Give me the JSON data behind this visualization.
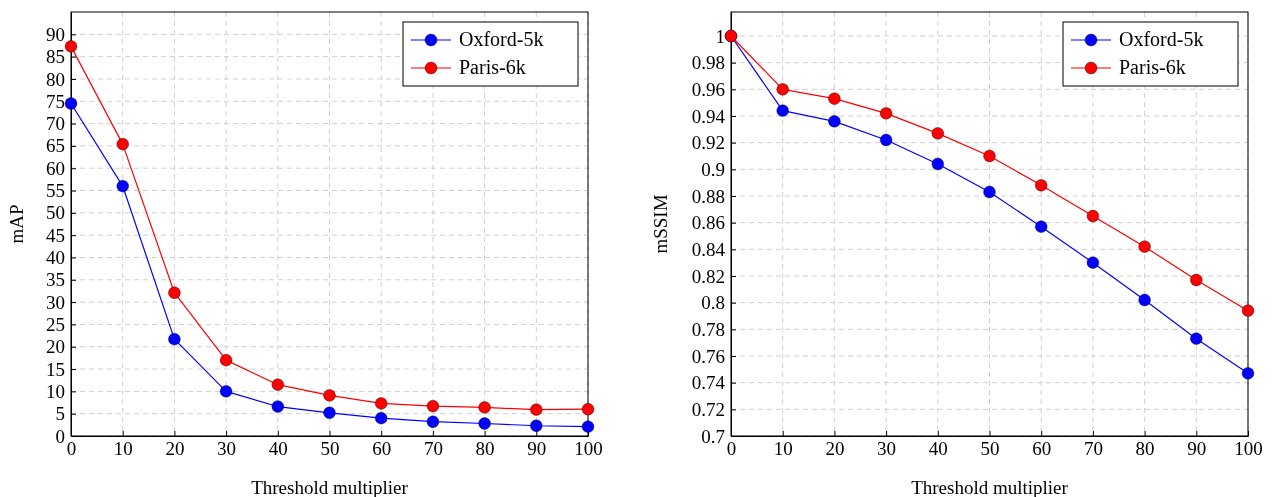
{
  "chart_data": [
    {
      "type": "line",
      "xlabel": "Threshold multiplier",
      "ylabel": "mAP",
      "x": [
        0,
        10,
        20,
        30,
        40,
        50,
        60,
        70,
        80,
        90,
        100
      ],
      "xlim": [
        0,
        100
      ],
      "xticks": [
        0,
        10,
        20,
        30,
        40,
        50,
        60,
        70,
        80,
        90,
        100
      ],
      "ylim": [
        0,
        95
      ],
      "yticks": [
        0,
        5,
        10,
        15,
        20,
        25,
        30,
        35,
        40,
        45,
        50,
        55,
        60,
        65,
        70,
        75,
        80,
        85,
        90
      ],
      "grid": true,
      "legend": "top right",
      "marker": "circle",
      "line_style": "solid",
      "series": [
        {
          "name": "Oxford-5k",
          "color": "#0000ff",
          "values": [
            74.5,
            56,
            21.7,
            10,
            6.6,
            5.2,
            4,
            3.2,
            2.8,
            2.3,
            2.1
          ]
        },
        {
          "name": "Paris-6k",
          "color": "#ff0000",
          "values": [
            87.3,
            65.4,
            32.1,
            17,
            11.5,
            9.1,
            7.3,
            6.7,
            6.4,
            5.9,
            6.0
          ]
        }
      ]
    },
    {
      "type": "line",
      "xlabel": "Threshold multiplier",
      "ylabel": "mSSIM",
      "x": [
        0,
        10,
        20,
        30,
        40,
        50,
        60,
        70,
        80,
        90,
        100
      ],
      "xlim": [
        0,
        100
      ],
      "xticks": [
        0,
        10,
        20,
        30,
        40,
        50,
        60,
        70,
        80,
        90,
        100
      ],
      "ylim": [
        0.7,
        1.018
      ],
      "yticks": [
        0.7,
        0.72,
        0.74,
        0.76,
        0.78,
        0.8,
        0.82,
        0.84,
        0.86,
        0.88,
        0.9,
        0.92,
        0.94,
        0.96,
        0.98,
        1
      ],
      "grid": true,
      "legend": "top right",
      "marker": "circle",
      "line_style": "solid",
      "series": [
        {
          "name": "Oxford-5k",
          "color": "#0000ff",
          "values": [
            1,
            0.944,
            0.936,
            0.922,
            0.904,
            0.883,
            0.857,
            0.83,
            0.802,
            0.773,
            0.747
          ]
        },
        {
          "name": "Paris-6k",
          "color": "#ff0000",
          "values": [
            1,
            0.96,
            0.953,
            0.942,
            0.927,
            0.91,
            0.888,
            0.865,
            0.842,
            0.817,
            0.794
          ]
        }
      ]
    }
  ]
}
